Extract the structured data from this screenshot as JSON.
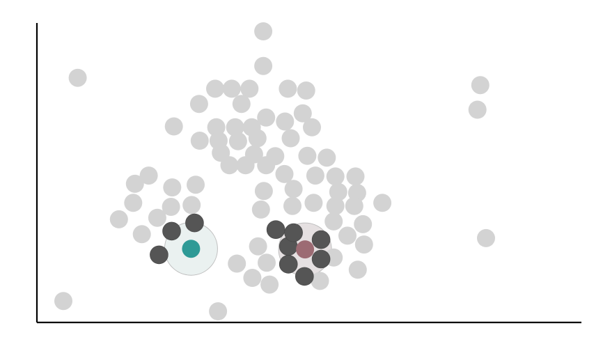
{
  "chart_data": {
    "type": "scatter",
    "title": "",
    "xlabel": "",
    "ylabel": "",
    "grid": false,
    "legend": "none",
    "xlim": [
      0,
      100
    ],
    "ylim": [
      0,
      100
    ],
    "colors": {
      "point": "#d3d3d3",
      "neighbor": "#555555",
      "query_a": "#2e9a96",
      "query_a_radius": "#e6efed",
      "query_b": "#9c6b73",
      "query_b_radius": "#e0dbdc",
      "axis": "#000000"
    },
    "series": [
      {
        "role": "points",
        "points": [
          [
            42.5,
            100
          ],
          [
            42.5,
            88.6
          ],
          [
            10.1,
            84.7
          ],
          [
            34.1,
            81.1
          ],
          [
            37.0,
            81.1
          ],
          [
            40.1,
            81.1
          ],
          [
            46.8,
            81.1
          ],
          [
            50.0,
            80.5
          ],
          [
            31.3,
            76.1
          ],
          [
            38.7,
            76.1
          ],
          [
            49.4,
            73.0
          ],
          [
            43.0,
            71.6
          ],
          [
            46.3,
            70.3
          ],
          [
            26.9,
            68.7
          ],
          [
            34.3,
            68.4
          ],
          [
            37.6,
            68.4
          ],
          [
            40.5,
            68.4
          ],
          [
            51.0,
            68.4
          ],
          [
            31.4,
            64.0
          ],
          [
            34.7,
            64.0
          ],
          [
            38.1,
            63.8
          ],
          [
            41.5,
            64.8
          ],
          [
            47.3,
            64.8
          ],
          [
            35.1,
            60.0
          ],
          [
            40.9,
            59.5
          ],
          [
            44.6,
            58.9
          ],
          [
            50.2,
            59.0
          ],
          [
            53.6,
            58.4
          ],
          [
            39.4,
            55.9
          ],
          [
            43.0,
            55.9
          ],
          [
            36.6,
            55.9
          ],
          [
            22.5,
            52.5
          ],
          [
            46.2,
            53.0
          ],
          [
            51.6,
            52.5
          ],
          [
            55.1,
            52.2
          ],
          [
            58.6,
            52.2
          ],
          [
            20.1,
            49.8
          ],
          [
            26.6,
            48.6
          ],
          [
            30.7,
            49.5
          ],
          [
            42.6,
            47.4
          ],
          [
            47.8,
            48.1
          ],
          [
            55.6,
            47.1
          ],
          [
            58.9,
            46.8
          ],
          [
            19.8,
            43.5
          ],
          [
            26.4,
            42.2
          ],
          [
            30.0,
            42.8
          ],
          [
            47.6,
            42.5
          ],
          [
            51.3,
            43.5
          ],
          [
            55.1,
            42.5
          ],
          [
            58.4,
            42.5
          ],
          [
            63.3,
            43.5
          ],
          [
            42.1,
            41.3
          ],
          [
            17.3,
            38.1
          ],
          [
            24.0,
            38.6
          ],
          [
            54.8,
            37.4
          ],
          [
            59.9,
            36.5
          ],
          [
            21.3,
            33.2
          ],
          [
            57.2,
            32.7
          ],
          [
            60.1,
            29.8
          ],
          [
            41.6,
            29.2
          ],
          [
            54.8,
            25.5
          ],
          [
            37.9,
            23.5
          ],
          [
            43.1,
            23.8
          ],
          [
            59.0,
            21.5
          ],
          [
            40.6,
            18.8
          ],
          [
            52.4,
            17.8
          ],
          [
            43.6,
            16.6
          ],
          [
            7.6,
            11.2
          ],
          [
            34.6,
            7.8
          ],
          [
            80.4,
            82.3
          ],
          [
            79.9,
            74.2
          ],
          [
            81.4,
            31.9
          ]
        ]
      },
      {
        "role": "neighbors",
        "points": [
          [
            26.5,
            34.2
          ],
          [
            30.5,
            36.9
          ],
          [
            24.3,
            26.4
          ],
          [
            44.7,
            34.7
          ],
          [
            46.9,
            29.2
          ],
          [
            47.8,
            33.7
          ],
          [
            52.6,
            31.4
          ],
          [
            52.6,
            25.0
          ],
          [
            46.9,
            23.3
          ],
          [
            49.7,
            19.3
          ]
        ]
      },
      {
        "role": "query",
        "color": "query_a",
        "points": [
          [
            29.9,
            28.4
          ]
        ]
      },
      {
        "role": "query",
        "color": "query_b",
        "points": [
          [
            49.8,
            28.2
          ]
        ]
      }
    ]
  }
}
